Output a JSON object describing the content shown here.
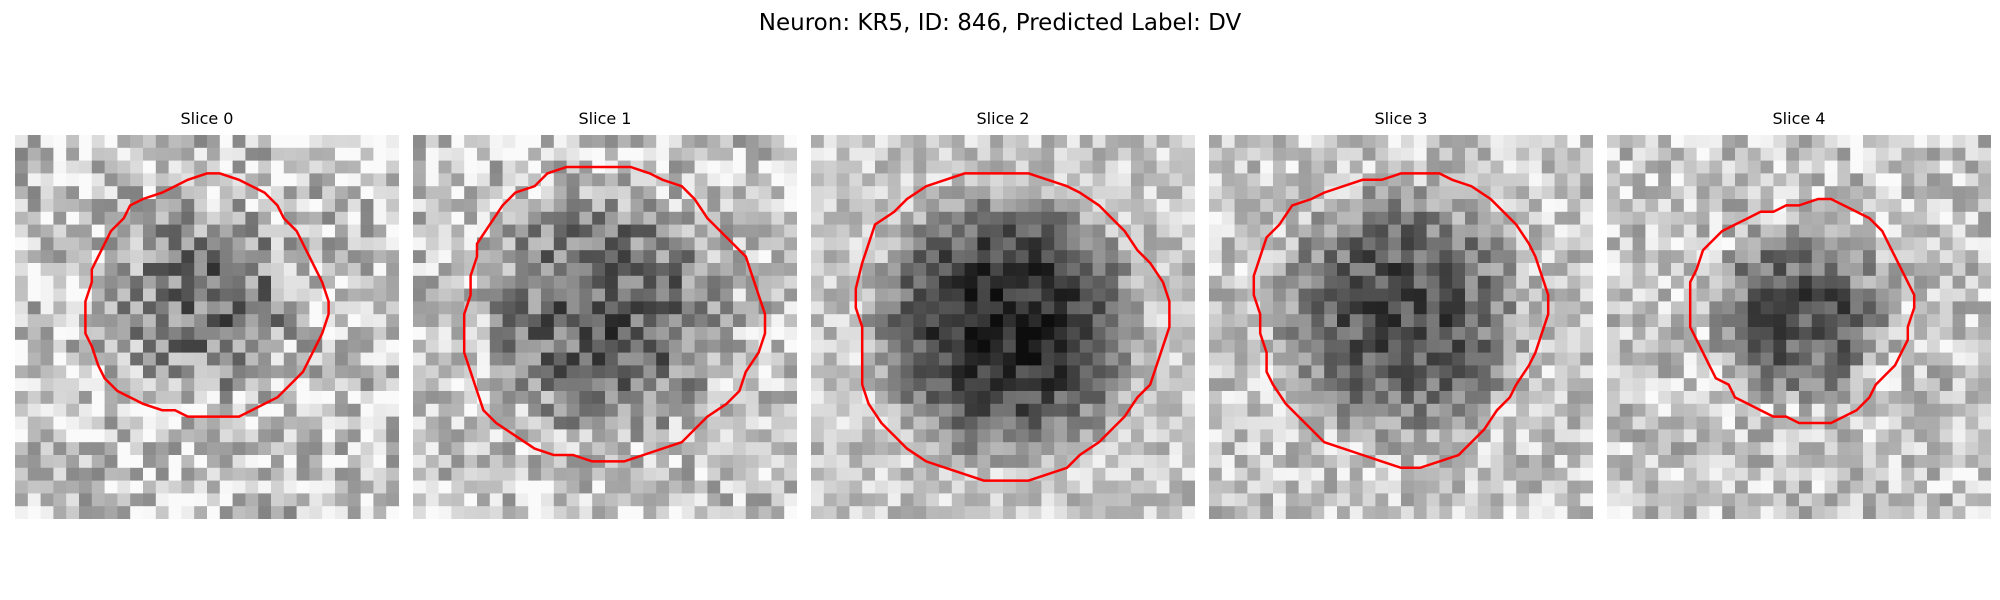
{
  "figure": {
    "title": "Neuron: KR5, ID: 846, Predicted Label: DV",
    "contour_color": "#ff0000"
  },
  "panels": [
    {
      "title": "Slice 0"
    },
    {
      "title": "Slice 1"
    },
    {
      "title": "Slice 2"
    },
    {
      "title": "Slice 3"
    },
    {
      "title": "Slice 4"
    }
  ]
}
